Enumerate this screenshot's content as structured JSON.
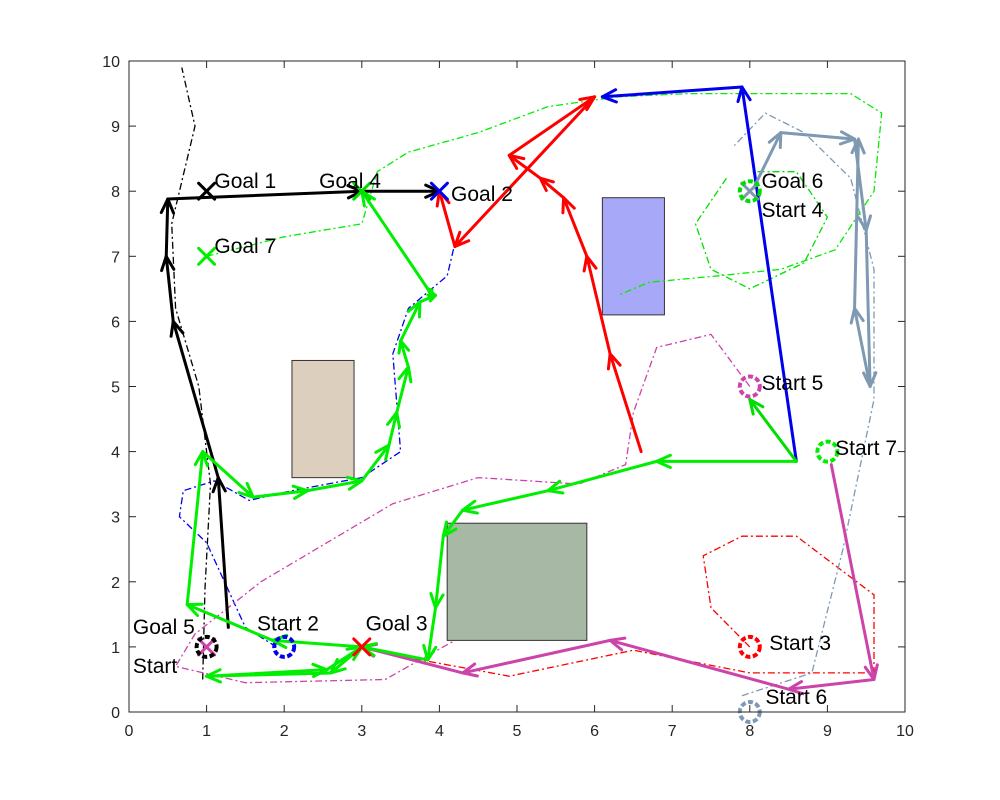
{
  "chart_data": {
    "type": "line",
    "title": "",
    "xlabel": "",
    "ylabel": "",
    "xlim": [
      0,
      10
    ],
    "ylim": [
      0,
      10
    ],
    "xticks": [
      "0",
      "1",
      "2",
      "3",
      "4",
      "5",
      "6",
      "7",
      "8",
      "9",
      "10"
    ],
    "yticks": [
      "0",
      "1",
      "2",
      "3",
      "4",
      "5",
      "6",
      "7",
      "8",
      "9",
      "10"
    ],
    "grid": false,
    "legend": "none",
    "obstacles": [
      {
        "x0": 2.1,
        "y0": 3.6,
        "x1": 2.9,
        "y1": 5.4,
        "color": "#dccfbe"
      },
      {
        "x0": 6.1,
        "y0": 6.1,
        "x1": 6.9,
        "y1": 7.9,
        "color": "#a8a8f8"
      },
      {
        "x0": 4.1,
        "y0": 1.1,
        "x1": 5.9,
        "y1": 2.9,
        "color": "#a7b9a5"
      }
    ],
    "series": [
      {
        "color": "#000000",
        "path": [
          [
            1.28,
            1.3
          ],
          [
            1.15,
            3.6
          ],
          [
            0.57,
            6.0
          ],
          [
            0.48,
            7.0
          ],
          [
            0.5,
            7.88
          ],
          [
            3.0,
            8.0
          ],
          [
            4.0,
            8.0
          ]
        ],
        "reference": [
          [
            0.95,
            0.5
          ],
          [
            0.98,
            1.9
          ],
          [
            1.05,
            3.5
          ],
          [
            0.9,
            5.0
          ],
          [
            0.6,
            6.2
          ],
          [
            0.55,
            7.5
          ],
          [
            0.85,
            9.0
          ],
          [
            0.68,
            9.9
          ]
        ]
      },
      {
        "color": "#0000ee",
        "path": [
          [
            8.6,
            3.85
          ],
          [
            7.9,
            9.6
          ],
          [
            6.1,
            9.45
          ]
        ],
        "reference": [
          [
            1.9,
            1.0
          ],
          [
            1.5,
            1.3
          ],
          [
            1.0,
            2.6
          ],
          [
            0.65,
            3.0
          ],
          [
            0.7,
            3.4
          ],
          [
            1.1,
            3.55
          ],
          [
            1.55,
            3.25
          ],
          [
            2.1,
            3.4
          ],
          [
            3.0,
            3.6
          ],
          [
            3.5,
            4.0
          ],
          [
            3.4,
            5.5
          ],
          [
            3.6,
            6.2
          ],
          [
            4.1,
            6.7
          ],
          [
            4.2,
            7.2
          ]
        ]
      },
      {
        "color": "#ff0000",
        "path": [
          [
            6.6,
            4.0
          ],
          [
            6.2,
            5.5
          ],
          [
            5.9,
            7.0
          ],
          [
            5.6,
            7.9
          ],
          [
            5.3,
            8.2
          ],
          [
            4.9,
            8.55
          ],
          [
            6.0,
            9.45
          ],
          [
            4.2,
            7.15
          ],
          [
            4.0,
            8.0
          ]
        ],
        "reference": [
          [
            8.0,
            1.0
          ],
          [
            7.5,
            1.6
          ],
          [
            7.4,
            2.4
          ],
          [
            7.9,
            2.7
          ],
          [
            8.6,
            2.7
          ],
          [
            9.6,
            1.8
          ],
          [
            9.6,
            0.6
          ],
          [
            8.0,
            0.6
          ],
          [
            6.5,
            0.95
          ],
          [
            4.9,
            0.55
          ],
          [
            3.3,
            0.9
          ]
        ]
      },
      {
        "color": "#cc44aa",
        "path": [
          [
            9.05,
            3.8
          ],
          [
            9.6,
            0.5
          ],
          [
            8.5,
            0.35
          ],
          [
            6.2,
            1.1
          ],
          [
            4.3,
            0.6
          ],
          [
            3.0,
            1.0
          ]
        ],
        "reference": [
          [
            8.0,
            5.0
          ],
          [
            7.5,
            5.8
          ],
          [
            6.8,
            5.6
          ],
          [
            6.5,
            4.6
          ],
          [
            6.4,
            3.8
          ],
          [
            5.8,
            3.5
          ],
          [
            4.5,
            3.6
          ],
          [
            3.4,
            3.2
          ],
          [
            1.7,
            2.0
          ],
          [
            0.85,
            1.2
          ],
          [
            0.6,
            0.7
          ],
          [
            1.5,
            0.45
          ],
          [
            3.3,
            0.5
          ],
          [
            4.2,
            1.1
          ]
        ]
      },
      {
        "color": "#7f99b2",
        "path": [
          [
            8.05,
            8.05
          ],
          [
            8.4,
            8.9
          ],
          [
            9.35,
            8.8
          ],
          [
            9.5,
            7.4
          ],
          [
            9.55,
            5.0
          ],
          [
            9.35,
            6.2
          ],
          [
            9.4,
            8.8
          ]
        ],
        "reference": [
          [
            7.9,
            0.25
          ],
          [
            8.8,
            0.6
          ],
          [
            9.2,
            2.5
          ],
          [
            9.6,
            4.8
          ],
          [
            9.6,
            6.8
          ],
          [
            9.3,
            8.2
          ],
          [
            8.7,
            8.9
          ],
          [
            8.2,
            9.2
          ],
          [
            7.8,
            8.7
          ]
        ]
      },
      {
        "color": "#00dd00",
        "path": [
          [
            8.6,
            3.85
          ],
          [
            8.0,
            4.8
          ]
        ],
        "reference": [
          [
            7.7,
            8.2
          ],
          [
            7.3,
            7.5
          ],
          [
            7.5,
            6.8
          ],
          [
            8.0,
            6.5
          ],
          [
            8.7,
            6.9
          ],
          [
            9.0,
            7.6
          ],
          [
            8.6,
            8.3
          ],
          [
            8.0,
            8.3
          ]
        ]
      },
      {
        "color": "#00ee00",
        "path": [
          [
            8.6,
            3.85
          ],
          [
            6.8,
            3.85
          ],
          [
            5.4,
            3.4
          ],
          [
            4.3,
            3.1
          ],
          [
            4.05,
            2.7
          ],
          [
            3.95,
            1.6
          ],
          [
            3.85,
            0.8
          ],
          [
            3.0,
            1.0
          ],
          [
            2.6,
            0.6
          ],
          [
            1.0,
            0.55
          ],
          [
            2.55,
            0.65
          ],
          [
            3.0,
            1.0
          ],
          [
            1.85,
            1.1
          ],
          [
            0.75,
            1.65
          ],
          [
            0.95,
            4.0
          ],
          [
            1.6,
            3.3
          ],
          [
            2.3,
            3.4
          ],
          [
            3.0,
            3.55
          ],
          [
            3.35,
            4.1
          ],
          [
            3.45,
            4.6
          ],
          [
            3.6,
            5.3
          ],
          [
            3.5,
            5.7
          ],
          [
            3.75,
            6.3
          ],
          [
            3.95,
            6.4
          ],
          [
            3.85,
            6.5
          ],
          [
            3.0,
            8.0
          ]
        ],
        "reference": [
          [
            1.0,
            7.0
          ],
          [
            2.0,
            7.3
          ],
          [
            3.0,
            7.5
          ],
          [
            3.2,
            8.3
          ],
          [
            3.6,
            8.6
          ],
          [
            4.5,
            8.9
          ],
          [
            5.4,
            9.3
          ],
          [
            6.3,
            9.45
          ],
          [
            7.2,
            9.5
          ],
          [
            8.3,
            9.5
          ],
          [
            9.3,
            9.5
          ],
          [
            9.7,
            9.2
          ],
          [
            9.6,
            8.0
          ],
          [
            9.1,
            7.1
          ],
          [
            8.4,
            6.8
          ],
          [
            7.6,
            6.7
          ],
          [
            6.7,
            6.6
          ],
          [
            6.3,
            6.4
          ]
        ]
      }
    ],
    "markers": [
      {
        "x": 1.0,
        "y": 8.0,
        "kind": "x",
        "color": "#000000"
      },
      {
        "x": 4.0,
        "y": 8.0,
        "kind": "x",
        "color": "#0000ee"
      },
      {
        "x": 3.0,
        "y": 1.0,
        "kind": "x",
        "color": "#ff0000"
      },
      {
        "x": 3.0,
        "y": 8.0,
        "kind": "x",
        "color": "#00dd00"
      },
      {
        "x": 1.0,
        "y": 1.0,
        "kind": "x",
        "color": "#cc44aa"
      },
      {
        "x": 8.0,
        "y": 8.0,
        "kind": "x",
        "color": "#7f99b2"
      },
      {
        "x": 1.0,
        "y": 7.0,
        "kind": "x",
        "color": "#00ee00"
      },
      {
        "x": 1.0,
        "y": 1.0,
        "kind": "o",
        "color": "#000000"
      },
      {
        "x": 2.0,
        "y": 1.0,
        "kind": "o",
        "color": "#0000ee"
      },
      {
        "x": 8.0,
        "y": 1.0,
        "kind": "o",
        "color": "#ff0000"
      },
      {
        "x": 8.0,
        "y": 8.0,
        "kind": "o",
        "color": "#00dd00"
      },
      {
        "x": 8.0,
        "y": 5.0,
        "kind": "o",
        "color": "#cc44aa"
      },
      {
        "x": 8.0,
        "y": 0.0,
        "kind": "o",
        "color": "#7f99b2"
      },
      {
        "x": 9.0,
        "y": 4.0,
        "kind": "o",
        "color": "#00ee00"
      }
    ],
    "annotations": [
      {
        "text": "Goal 1",
        "x": 1.1,
        "y": 8.05
      },
      {
        "text": "Goal 4",
        "x": 2.45,
        "y": 8.05
      },
      {
        "text": "Goal 2",
        "x": 4.15,
        "y": 7.85
      },
      {
        "text": "Goal 7",
        "x": 1.1,
        "y": 7.05
      },
      {
        "text": "Goal 6",
        "x": 8.15,
        "y": 8.05
      },
      {
        "text": "Start 4",
        "x": 8.15,
        "y": 7.6
      },
      {
        "text": "Start 5",
        "x": 8.15,
        "y": 4.95
      },
      {
        "text": "Start 7",
        "x": 9.1,
        "y": 3.95
      },
      {
        "text": "Start 2",
        "x": 1.65,
        "y": 1.25
      },
      {
        "text": "Goal 3",
        "x": 3.05,
        "y": 1.25
      },
      {
        "text": "Goal 5",
        "x": 0.05,
        "y": 1.2
      },
      {
        "text": "Start",
        "x": 0.05,
        "y": 0.6
      },
      {
        "text": "Start 3",
        "x": 8.25,
        "y": 0.95
      },
      {
        "text": "Start 6",
        "x": 8.2,
        "y": 0.12
      }
    ]
  }
}
